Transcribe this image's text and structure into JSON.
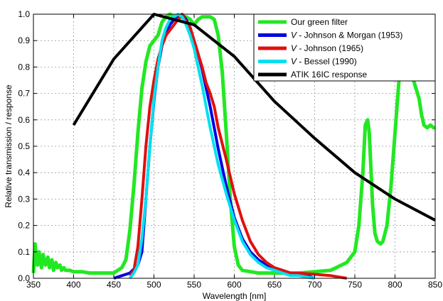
{
  "chart_data": {
    "type": "line",
    "title": "",
    "xlabel": "Wavelength [nm]",
    "ylabel": "Relative transmission / response",
    "xlim": [
      350,
      850
    ],
    "ylim": [
      0,
      1.0
    ],
    "x_ticks": [
      "350",
      "400",
      "450",
      "500",
      "550",
      "600",
      "650",
      "700",
      "750",
      "800",
      "850"
    ],
    "y_ticks": [
      "0.0",
      "0.1",
      "0.2",
      "0.3",
      "0.4",
      "0.5",
      "0.6",
      "0.7",
      "0.8",
      "0.9",
      "1.0"
    ],
    "grid": true,
    "legend_position": "top-right",
    "series": [
      {
        "name": "Our green filter",
        "color": "#22e822",
        "x": [
          350,
          352,
          355,
          357,
          360,
          362,
          365,
          368,
          370,
          373,
          375,
          378,
          380,
          383,
          385,
          388,
          390,
          395,
          400,
          410,
          420,
          430,
          440,
          450,
          455,
          460,
          465,
          470,
          475,
          480,
          485,
          490,
          495,
          500,
          505,
          510,
          515,
          520,
          525,
          530,
          535,
          540,
          545,
          550,
          555,
          560,
          565,
          570,
          575,
          580,
          585,
          590,
          595,
          600,
          605,
          610,
          620,
          630,
          640,
          650,
          660,
          680,
          700,
          720,
          740,
          750,
          755,
          760,
          763,
          766,
          768,
          770,
          772,
          775,
          778,
          782,
          785,
          790,
          795,
          800,
          805,
          810,
          813,
          816,
          818,
          820,
          823,
          826,
          830,
          833,
          836,
          840,
          844,
          848,
          850
        ],
        "values": [
          0.02,
          0.13,
          0.05,
          0.1,
          0.04,
          0.09,
          0.05,
          0.08,
          0.04,
          0.07,
          0.03,
          0.06,
          0.04,
          0.05,
          0.03,
          0.04,
          0.03,
          0.03,
          0.025,
          0.025,
          0.02,
          0.02,
          0.02,
          0.02,
          0.03,
          0.04,
          0.07,
          0.18,
          0.35,
          0.55,
          0.72,
          0.82,
          0.88,
          0.9,
          0.92,
          0.97,
          0.99,
          1.0,
          0.99,
          0.98,
          0.99,
          0.99,
          0.98,
          0.96,
          0.98,
          0.99,
          0.99,
          0.99,
          0.98,
          0.92,
          0.78,
          0.55,
          0.3,
          0.12,
          0.05,
          0.03,
          0.025,
          0.02,
          0.02,
          0.02,
          0.02,
          0.02,
          0.025,
          0.03,
          0.06,
          0.1,
          0.2,
          0.4,
          0.58,
          0.6,
          0.55,
          0.42,
          0.28,
          0.17,
          0.14,
          0.13,
          0.14,
          0.2,
          0.35,
          0.55,
          0.75,
          0.85,
          0.88,
          0.9,
          0.88,
          0.8,
          0.75,
          0.72,
          0.68,
          0.62,
          0.58,
          0.57,
          0.58,
          0.57,
          0.57
        ]
      },
      {
        "name": "V - Johnson & Morgan (1953)",
        "color": "#0000e0",
        "x": [
          450,
          460,
          470,
          480,
          485,
          490,
          495,
          500,
          505,
          510,
          515,
          520,
          525,
          530,
          535,
          540,
          545,
          550,
          555,
          560,
          565,
          570,
          575,
          580,
          590,
          600,
          610,
          620,
          630,
          640,
          650,
          660,
          670,
          680,
          690,
          700
        ],
        "values": [
          0.0,
          0.01,
          0.02,
          0.05,
          0.1,
          0.3,
          0.5,
          0.67,
          0.8,
          0.88,
          0.93,
          0.96,
          0.98,
          0.99,
          1.0,
          0.98,
          0.95,
          0.9,
          0.85,
          0.79,
          0.72,
          0.65,
          0.57,
          0.49,
          0.35,
          0.23,
          0.15,
          0.1,
          0.07,
          0.05,
          0.04,
          0.03,
          0.02,
          0.015,
          0.01,
          0.0
        ]
      },
      {
        "name": "V - Johnson (1965)",
        "color": "#e01010",
        "x": [
          470,
          475,
          480,
          485,
          490,
          495,
          500,
          505,
          510,
          515,
          520,
          525,
          530,
          535,
          540,
          545,
          550,
          555,
          560,
          565,
          570,
          575,
          580,
          590,
          600,
          610,
          620,
          630,
          640,
          650,
          660,
          670,
          680,
          700,
          720,
          740
        ],
        "values": [
          0.01,
          0.03,
          0.12,
          0.3,
          0.5,
          0.65,
          0.75,
          0.83,
          0.88,
          0.92,
          0.94,
          0.96,
          0.98,
          1.0,
          0.97,
          0.95,
          0.9,
          0.85,
          0.8,
          0.74,
          0.7,
          0.65,
          0.57,
          0.45,
          0.32,
          0.22,
          0.14,
          0.09,
          0.06,
          0.04,
          0.03,
          0.02,
          0.02,
          0.015,
          0.01,
          0.0
        ]
      },
      {
        "name": "V - Bessel (1990)",
        "color": "#00e0f0",
        "x": [
          470,
          475,
          480,
          485,
          490,
          495,
          500,
          505,
          510,
          515,
          520,
          525,
          530,
          535,
          540,
          545,
          550,
          555,
          560,
          565,
          570,
          580,
          590,
          600,
          610,
          620,
          630,
          640,
          650,
          660,
          670,
          680,
          690,
          700
        ],
        "values": [
          0.0,
          0.02,
          0.05,
          0.15,
          0.3,
          0.5,
          0.68,
          0.8,
          0.9,
          0.95,
          0.98,
          0.99,
          1.0,
          0.99,
          0.96,
          0.92,
          0.87,
          0.8,
          0.73,
          0.65,
          0.57,
          0.43,
          0.32,
          0.22,
          0.14,
          0.09,
          0.06,
          0.04,
          0.03,
          0.02,
          0.01,
          0.01,
          0.005,
          0.0
        ]
      },
      {
        "name": "ATIK 16IC response",
        "color": "#000000",
        "x": [
          400,
          450,
          500,
          550,
          600,
          650,
          700,
          750,
          800,
          850
        ],
        "values": [
          0.58,
          0.83,
          1.0,
          0.96,
          0.84,
          0.67,
          0.53,
          0.4,
          0.3,
          0.22
        ]
      }
    ]
  }
}
